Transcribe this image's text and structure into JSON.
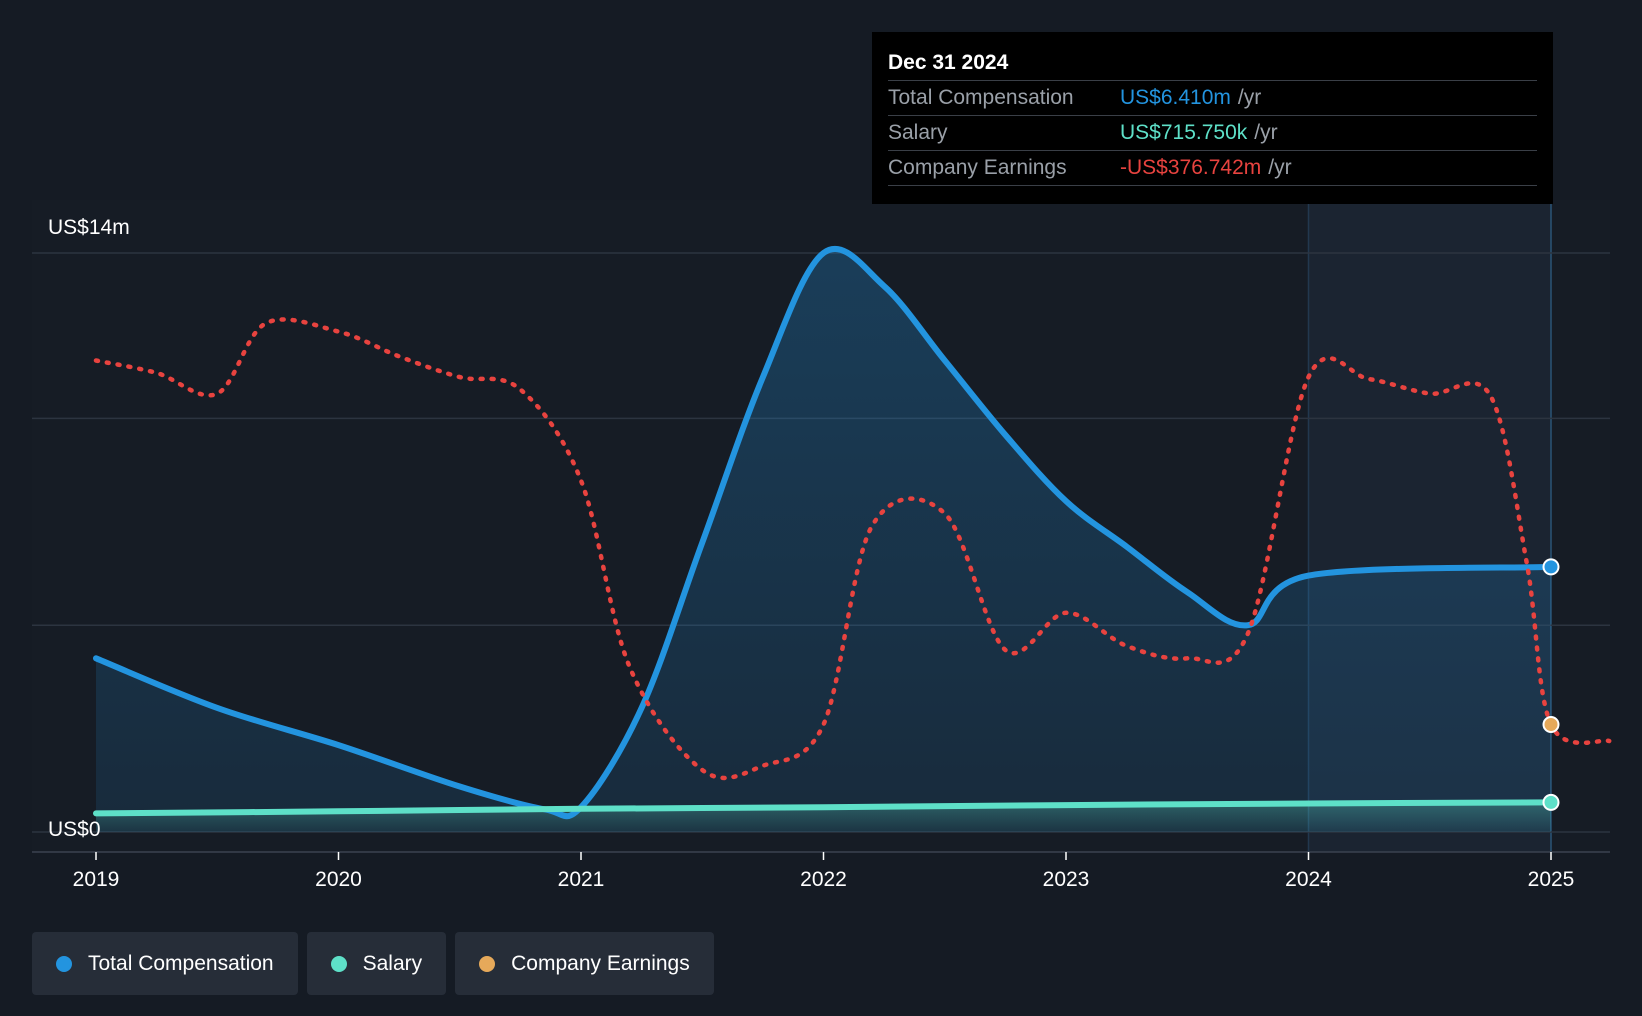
{
  "chart_data": {
    "type": "line",
    "title": "",
    "xlabel": "",
    "ylabel": "",
    "x_ticks": [
      "2019",
      "2020",
      "2021",
      "2022",
      "2023",
      "2024",
      "2025"
    ],
    "x_range": [
      2019,
      2025.24
    ],
    "ylim": [
      0,
      14
    ],
    "y_ticks": [
      {
        "value": 14,
        "label": "US$14m"
      },
      {
        "value": 0,
        "label": "US$0"
      }
    ],
    "gridlines": [
      14,
      10,
      5,
      0
    ],
    "highlight_range": [
      2024,
      2025
    ],
    "series": [
      {
        "name": "Total Compensation",
        "color": "#2394df",
        "style": "solid",
        "points": [
          [
            2019,
            4.2
          ],
          [
            2019.5,
            3.0
          ],
          [
            2020,
            2.1
          ],
          [
            2020.5,
            1.1
          ],
          [
            2020.85,
            0.55
          ],
          [
            2021,
            0.6
          ],
          [
            2021.25,
            3.0
          ],
          [
            2021.5,
            7.0
          ],
          [
            2021.75,
            11.0
          ],
          [
            2022,
            14.0
          ],
          [
            2022.25,
            13.2
          ],
          [
            2022.5,
            11.4
          ],
          [
            2022.75,
            9.6
          ],
          [
            2023,
            8.0
          ],
          [
            2023.25,
            6.9
          ],
          [
            2023.5,
            5.8
          ],
          [
            2023.75,
            5.0
          ],
          [
            2024,
            6.2
          ],
          [
            2025,
            6.41
          ]
        ],
        "end_value_label": "US$6.410m"
      },
      {
        "name": "Salary",
        "color": "#5ee0c8",
        "style": "solid",
        "points": [
          [
            2019,
            0.45
          ],
          [
            2020,
            0.5
          ],
          [
            2021,
            0.56
          ],
          [
            2022,
            0.6
          ],
          [
            2023,
            0.65
          ],
          [
            2024,
            0.69
          ],
          [
            2025,
            0.716
          ]
        ],
        "end_value_label": "US$715.750k"
      },
      {
        "name": "Company Earnings",
        "color": "#e8433f",
        "marker_color": "#e6a95a",
        "style": "dotted",
        "points": [
          [
            2019,
            11.4
          ],
          [
            2019.25,
            11.1
          ],
          [
            2019.5,
            10.6
          ],
          [
            2019.7,
            12.3
          ],
          [
            2020,
            12.1
          ],
          [
            2020.25,
            11.5
          ],
          [
            2020.5,
            11.0
          ],
          [
            2020.75,
            10.7
          ],
          [
            2021,
            8.5
          ],
          [
            2021.2,
            4.0
          ],
          [
            2021.5,
            1.5
          ],
          [
            2021.75,
            1.6
          ],
          [
            2022,
            2.6
          ],
          [
            2022.2,
            7.4
          ],
          [
            2022.5,
            7.7
          ],
          [
            2022.75,
            4.4
          ],
          [
            2023,
            5.3
          ],
          [
            2023.25,
            4.5
          ],
          [
            2023.5,
            4.2
          ],
          [
            2023.75,
            4.8
          ],
          [
            2024,
            11.0
          ],
          [
            2024.25,
            10.95
          ],
          [
            2024.5,
            10.6
          ],
          [
            2024.75,
            10.55
          ],
          [
            2024.9,
            6.5
          ],
          [
            2025,
            2.6
          ],
          [
            2025.24,
            2.2
          ]
        ],
        "end_value_label": "-US$376.742m"
      }
    ],
    "legend": {
      "placement": "bottom-left"
    }
  },
  "tooltip": {
    "date": "Dec 31 2024",
    "rows": [
      {
        "label": "Total Compensation",
        "value": "US$6.410m",
        "unit": "/yr",
        "color": "#2394df"
      },
      {
        "label": "Salary",
        "value": "US$715.750k",
        "unit": "/yr",
        "color": "#5ee0c8"
      },
      {
        "label": "Company Earnings",
        "value": "-US$376.742m",
        "unit": "/yr",
        "color": "#e8433f"
      }
    ]
  },
  "legend": {
    "items": [
      {
        "label": "Total Compensation",
        "color": "#2394df"
      },
      {
        "label": "Salary",
        "color": "#5ee0c8"
      },
      {
        "label": "Company Earnings",
        "color": "#e6a95a"
      }
    ]
  }
}
